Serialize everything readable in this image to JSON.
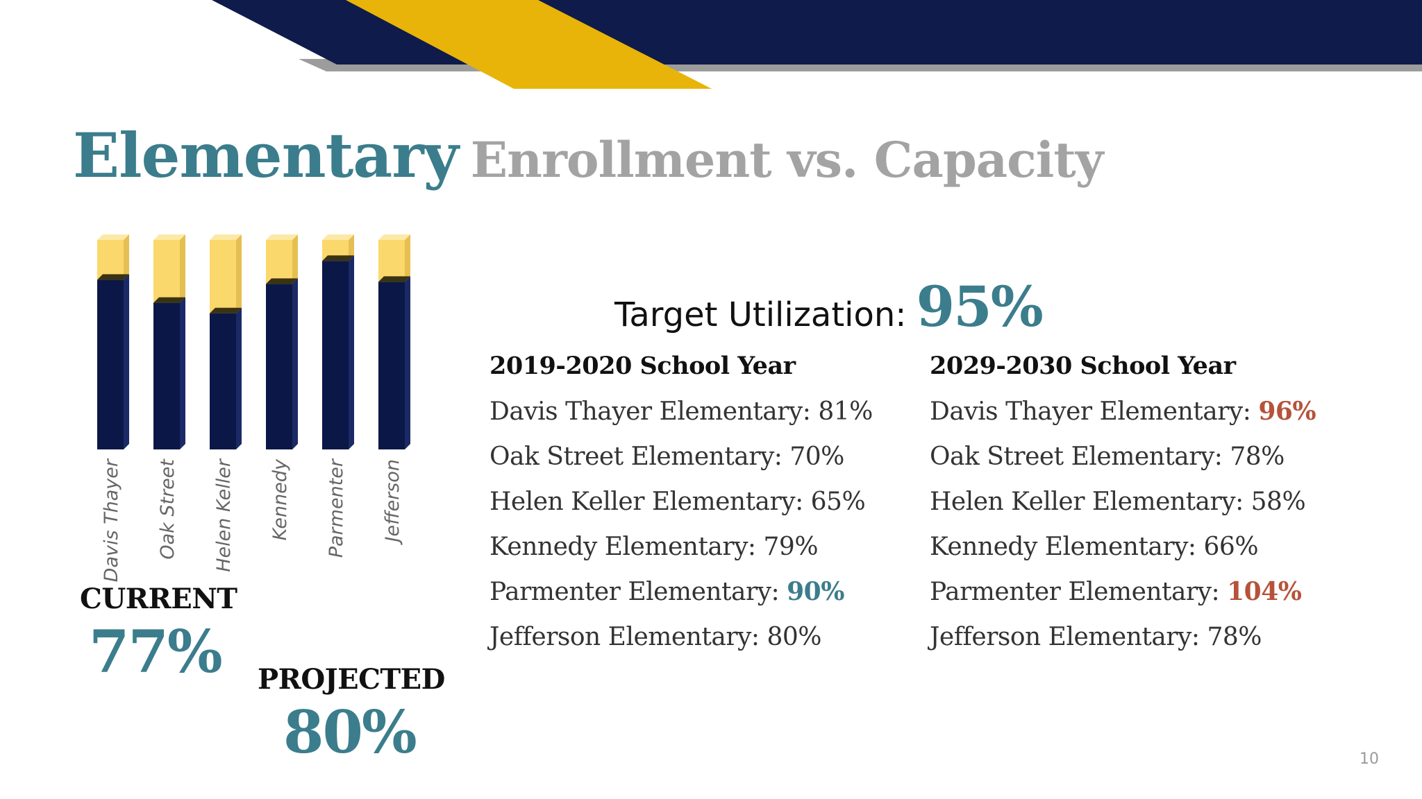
{
  "slide": {
    "title_highlight": "Elementary",
    "title_rest": "Enrollment vs. Capacity",
    "page_number": "10"
  },
  "colors": {
    "navy": "#0f1b4a",
    "gold": "#e8b40a",
    "teal": "#3b7d8c",
    "red": "#b5533a",
    "gray": "#a3a3a3",
    "bar_fill": "#0a1747",
    "bar_empty": "#fbd86b"
  },
  "summary": {
    "current_label": "CURRENT",
    "current_value": "77%",
    "projected_label": "PROJECTED",
    "projected_value": "80%"
  },
  "target": {
    "label": "Target Utilization:",
    "value": "95%"
  },
  "columns": [
    {
      "heading": "2019-2020 School Year",
      "rows": [
        {
          "name": "Davis Thayer Elementary: ",
          "pct": "81%",
          "style": "normal"
        },
        {
          "name": "Oak Street Elementary: ",
          "pct": "70%",
          "style": "normal"
        },
        {
          "name": "Helen Keller Elementary: ",
          "pct": "65%",
          "style": "normal"
        },
        {
          "name": "Kennedy Elementary: ",
          "pct": "79%",
          "style": "normal"
        },
        {
          "name": "Parmenter Elementary: ",
          "pct": "90%",
          "style": "teal"
        },
        {
          "name": "Jefferson Elementary: ",
          "pct": "80%",
          "style": "normal"
        }
      ]
    },
    {
      "heading": "2029-2030 School Year",
      "rows": [
        {
          "name": "Davis Thayer Elementary: ",
          "pct": "96%",
          "style": "red"
        },
        {
          "name": "Oak Street Elementary: ",
          "pct": "78%",
          "style": "normal"
        },
        {
          "name": "Helen Keller Elementary: ",
          "pct": "58%",
          "style": "normal"
        },
        {
          "name": "Kennedy Elementary: ",
          "pct": "66%",
          "style": "normal"
        },
        {
          "name": "Parmenter Elementary: ",
          "pct": "104%",
          "style": "red"
        },
        {
          "name": "Jefferson Elementary: ",
          "pct": "78%",
          "style": "normal"
        }
      ]
    }
  ],
  "chart_data": {
    "type": "bar",
    "categories": [
      "Davis Thayer",
      "Oak Street",
      "Helen Keller",
      "Kennedy",
      "Parmenter",
      "Jefferson"
    ],
    "values": [
      81,
      70,
      65,
      79,
      90,
      80
    ],
    "ylim": [
      0,
      100
    ],
    "title": "",
    "xlabel": "",
    "ylabel": ""
  }
}
